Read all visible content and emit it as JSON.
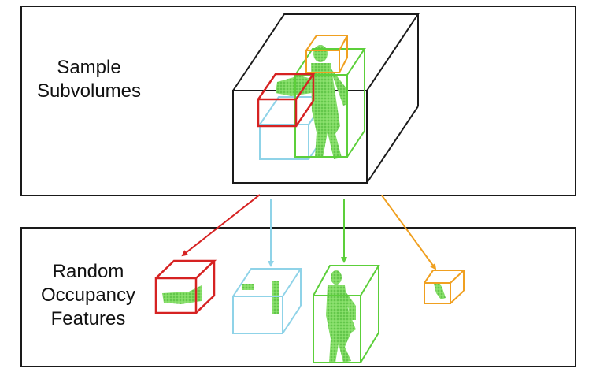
{
  "top_panel": {
    "label_lines": [
      "Sample",
      "Subvolumes"
    ]
  },
  "bottom_panel": {
    "label_lines": [
      "Random",
      "Occupancy",
      "Features"
    ]
  },
  "colors": {
    "outer_cube": "#1a1a1a",
    "red": "#d62222",
    "cyan": "#8fd3e8",
    "green": "#5ccf3a",
    "orange": "#f0a020",
    "point_cloud": "#6fd05a"
  }
}
